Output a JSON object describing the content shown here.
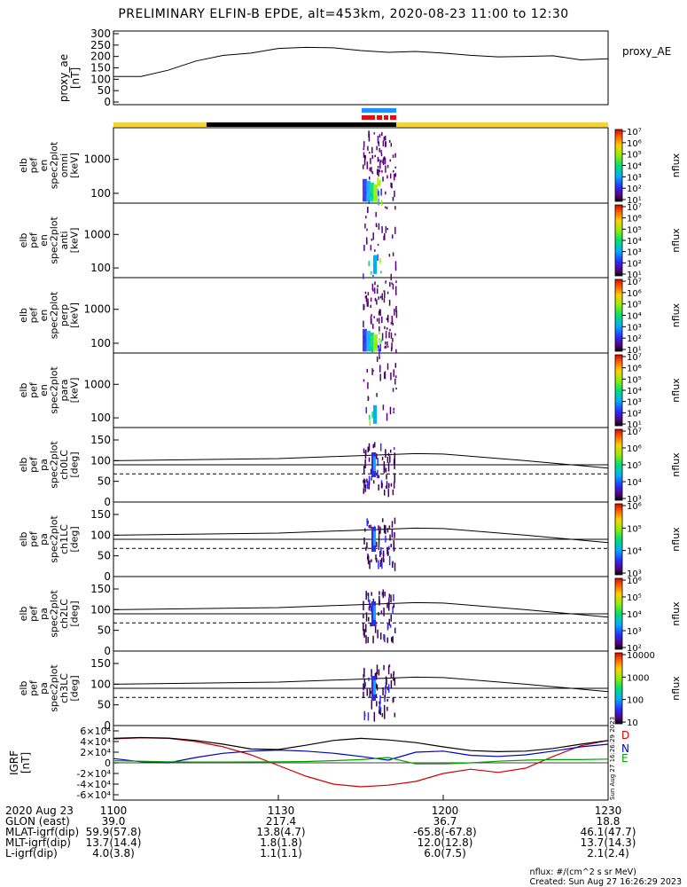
{
  "title": "PRELIMINARY ELFIN-B EPDE, alt=453km, 2020-08-23 11:00 to 12:30",
  "colors": {
    "state_bar_day": "#f5d23a",
    "state_bar_night": "#000000",
    "science_zone_blue": "#1e90ff",
    "science_zone_red": "#e01010",
    "igrf_d": "#d00000",
    "igrf_n": "#0000c0",
    "igrf_e": "#00a000"
  },
  "colorbar_label": "nflux",
  "chart_data": [
    {
      "type": "line",
      "panel": "proxy_ae",
      "ylabel": "proxy_ae [nT]",
      "legend": "proxy_AE",
      "ylim": [
        0,
        300
      ],
      "yticks": [
        "0",
        "50",
        "100",
        "150",
        "200",
        "250",
        "300"
      ],
      "x_minutes": [
        0,
        5,
        10,
        15,
        20,
        25,
        30,
        35,
        40,
        45,
        50,
        55,
        60,
        65,
        70,
        75,
        80,
        85,
        90
      ],
      "values": [
        112,
        112,
        140,
        180,
        205,
        215,
        235,
        240,
        238,
        226,
        218,
        222,
        215,
        205,
        198,
        200,
        203,
        185,
        190
      ]
    },
    {
      "type": "heatmap",
      "panel": "spec_en_omni",
      "ylabel": "elb pef en spec2plot omni [keV]",
      "y_scale": "log",
      "yticks": [
        "100",
        "1000"
      ],
      "colorbar_ticks": [
        "10¹",
        "10²",
        "10³",
        "10⁴",
        "10⁵",
        "10⁶",
        "10⁷"
      ]
    },
    {
      "type": "heatmap",
      "panel": "spec_en_anti",
      "ylabel": "elb pef en spec2plot anti [keV]",
      "y_scale": "log",
      "yticks": [
        "100",
        "1000"
      ],
      "colorbar_ticks": [
        "10¹",
        "10²",
        "10³",
        "10⁴",
        "10⁵",
        "10⁶",
        "10⁷"
      ]
    },
    {
      "type": "heatmap",
      "panel": "spec_en_perp",
      "ylabel": "elb pef en spec2plot perp [keV]",
      "y_scale": "log",
      "yticks": [
        "100",
        "1000"
      ],
      "colorbar_ticks": [
        "10¹",
        "10²",
        "10³",
        "10⁴",
        "10⁵",
        "10⁶",
        "10⁷"
      ]
    },
    {
      "type": "heatmap",
      "panel": "spec_en_para",
      "ylabel": "elb pef en spec2plot para [keV]",
      "y_scale": "log",
      "yticks": [
        "100",
        "1000"
      ],
      "colorbar_ticks": [
        "10¹",
        "10²",
        "10³",
        "10⁴",
        "10⁵",
        "10⁶",
        "10⁷"
      ]
    },
    {
      "type": "heatmap",
      "panel": "spec_pa_ch0",
      "ylabel": "elb pef pa spec2plot ch0LC [deg]",
      "ylim": [
        0,
        180
      ],
      "yticks": [
        "0",
        "50",
        "100",
        "150"
      ],
      "colorbar_ticks": [
        "10³",
        "10⁴",
        "10⁵",
        "10⁶",
        "10⁷"
      ]
    },
    {
      "type": "heatmap",
      "panel": "spec_pa_ch1",
      "ylabel": "elb pef pa spec2plot ch1LC [deg]",
      "ylim": [
        0,
        180
      ],
      "yticks": [
        "0",
        "50",
        "100",
        "150"
      ],
      "colorbar_ticks": [
        "10³",
        "10⁴",
        "10⁵",
        "10⁶"
      ]
    },
    {
      "type": "heatmap",
      "panel": "spec_pa_ch2",
      "ylabel": "elb pef pa spec2plot ch2LC [deg]",
      "ylim": [
        0,
        180
      ],
      "yticks": [
        "0",
        "50",
        "100",
        "150"
      ],
      "colorbar_ticks": [
        "10²",
        "10³",
        "10⁴",
        "10⁵",
        "10⁶"
      ]
    },
    {
      "type": "heatmap",
      "panel": "spec_pa_ch3",
      "ylabel": "elb pef pa spec2plot ch3LC [deg]",
      "ylim": [
        0,
        180
      ],
      "yticks": [
        "0",
        "50",
        "100",
        "150"
      ],
      "colorbar_ticks": [
        "10",
        "100",
        "1000",
        "10000"
      ]
    },
    {
      "type": "line",
      "panel": "igrf",
      "ylabel": "IGRF [nT]",
      "ylim": [
        -60000,
        60000
      ],
      "yticks": [
        "-6×10⁴",
        "-4×10⁴",
        "-2×10⁴",
        "0",
        "2×10⁴",
        "4×10⁴",
        "6×10⁴"
      ],
      "series": [
        {
          "name": "D",
          "x_minutes": [
            0,
            5,
            10,
            15,
            20,
            25,
            30,
            35,
            40,
            45,
            50,
            55,
            60,
            65,
            70,
            75,
            80,
            85,
            90
          ],
          "values": [
            45000,
            47000,
            46000,
            40000,
            30000,
            15000,
            -5000,
            -25000,
            -40000,
            -45000,
            -42000,
            -35000,
            -20000,
            -12000,
            -18000,
            -10000,
            12000,
            32000,
            42000
          ]
        },
        {
          "name": "N",
          "x_minutes": [
            0,
            5,
            10,
            15,
            20,
            25,
            30,
            35,
            40,
            45,
            50,
            55,
            60,
            65,
            70,
            75,
            80,
            85,
            90
          ],
          "values": [
            8000,
            2000,
            0,
            10000,
            18000,
            22000,
            24000,
            22000,
            18000,
            12000,
            5000,
            20000,
            22000,
            14000,
            12000,
            15000,
            22000,
            30000,
            35000
          ]
        },
        {
          "name": "E",
          "x_minutes": [
            0,
            5,
            10,
            15,
            20,
            25,
            30,
            35,
            40,
            45,
            50,
            55,
            60,
            65,
            70,
            75,
            80,
            85,
            90
          ],
          "values": [
            4000,
            3000,
            2000,
            1500,
            1500,
            1800,
            2000,
            2500,
            4000,
            6000,
            10000,
            -2000,
            -2000,
            0,
            3000,
            5000,
            6000,
            6000,
            7000
          ]
        },
        {
          "name": "total",
          "x_minutes": [
            0,
            5,
            10,
            15,
            20,
            25,
            30,
            35,
            40,
            45,
            50,
            55,
            60,
            65,
            70,
            75,
            80,
            85,
            90
          ],
          "values": [
            46000,
            47500,
            46500,
            42000,
            35000,
            26000,
            25000,
            33000,
            42000,
            46000,
            43000,
            38000,
            30000,
            23000,
            21000,
            22000,
            27000,
            35000,
            42000
          ]
        }
      ]
    }
  ],
  "ephemeris": {
    "rows": [
      {
        "label": "2020 Aug 23",
        "values": [
          "1100",
          "1130",
          "1200",
          "1230"
        ]
      },
      {
        "label": "GLON (east)",
        "values": [
          "39.0",
          "217.4",
          "36.7",
          "18.8"
        ]
      },
      {
        "label": "MLAT-igrf(dip)",
        "values": [
          "59.9(57.8)",
          "13.8(4.7)",
          "-65.8(-67.8)",
          "46.1(47.7)"
        ]
      },
      {
        "label": "MLT-igrf(dip)",
        "values": [
          "13.7(14.4)",
          "1.8(1.8)",
          "12.0(12.8)",
          "13.7(14.3)"
        ]
      },
      {
        "label": "L-igrf(dip)",
        "values": [
          "4.0(3.8)",
          "1.1(1.1)",
          "6.0(7.5)",
          "2.1(2.4)"
        ]
      }
    ]
  },
  "footer": {
    "units": "nflux: #/(cm^2 s sr MeV)",
    "created": "Created: Sun Aug 27 16:26:29 2023"
  },
  "side_stamp": "Sun Aug 27 16:26:29 2023"
}
